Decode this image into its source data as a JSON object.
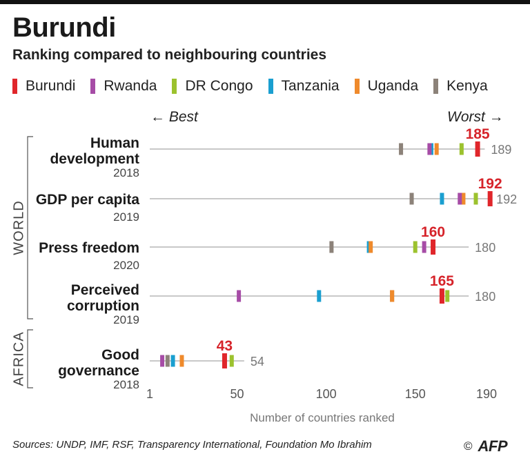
{
  "header": {
    "title": "Burundi",
    "subtitle": "Ranking compared to neighbouring countries"
  },
  "legend": [
    {
      "name": "Burundi",
      "color": "#e0262b"
    },
    {
      "name": "Rwanda",
      "color": "#a64ca6"
    },
    {
      "name": "DR Congo",
      "color": "#9cc22e"
    },
    {
      "name": "Tanzania",
      "color": "#1a9fd0"
    },
    {
      "name": "Uganda",
      "color": "#ef8a2c"
    },
    {
      "name": "Kenya",
      "color": "#8c8279"
    }
  ],
  "direction": {
    "best": "Best",
    "worst": "Worst",
    "best_arrow": "←",
    "worst_arrow": "→"
  },
  "groups": [
    {
      "label": "WORLD",
      "rows": [
        0,
        1,
        2,
        3
      ]
    },
    {
      "label": "AFRICA",
      "rows": [
        4
      ]
    }
  ],
  "chart_data": {
    "type": "dot_strip",
    "xlabel": "Number of countries ranked",
    "xlim": [
      1,
      196
    ],
    "xticks": [
      1,
      50,
      100,
      150,
      190
    ],
    "rows": [
      {
        "label_lines": [
          "Human",
          "development"
        ],
        "year": "2018",
        "total": 189,
        "values": {
          "Burundi": 185,
          "Rwanda": 158,
          "DR Congo": 176,
          "Tanzania": 159,
          "Uganda": 162,
          "Kenya": 142
        },
        "burundi_label": "185",
        "total_label": "189"
      },
      {
        "label_lines": [
          "GDP per capita"
        ],
        "year": "2019",
        "total": 192,
        "values": {
          "Burundi": 192,
          "Rwanda": 175,
          "DR Congo": 184,
          "Tanzania": 165,
          "Uganda": 177,
          "Kenya": 148
        },
        "burundi_label": "192",
        "total_label": "192"
      },
      {
        "label_lines": [
          "Press freedom"
        ],
        "year": "2020",
        "total": 180,
        "values": {
          "Burundi": 160,
          "Rwanda": 155,
          "DR Congo": 150,
          "Tanzania": 124,
          "Uganda": 125,
          "Kenya": 103
        },
        "burundi_label": "160",
        "total_label": "180"
      },
      {
        "label_lines": [
          "Perceived",
          "corruption"
        ],
        "year": "2019",
        "total": 180,
        "values": {
          "Burundi": 165,
          "Rwanda": 51,
          "DR Congo": 168,
          "Tanzania": 96,
          "Uganda": 137,
          "Kenya": 137
        },
        "burundi_label": "165",
        "total_label": "180"
      },
      {
        "label_lines": [
          "Good",
          "governance"
        ],
        "year": "2018",
        "total": 54,
        "values": {
          "Burundi": 43,
          "Rwanda": 8,
          "DR Congo": 47,
          "Tanzania": 14,
          "Uganda": 19,
          "Kenya": 11
        },
        "burundi_label": "43",
        "total_label": "54"
      }
    ]
  },
  "footer": {
    "sources": "Sources: UNDP, IMF, RSF, Transparency International, Foundation Mo Ibrahim",
    "copyright": "©",
    "agency": "AFP"
  }
}
